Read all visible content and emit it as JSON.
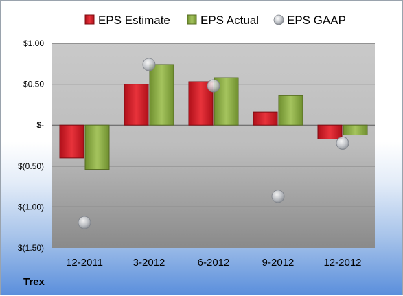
{
  "company": "Trex",
  "chart_data": {
    "type": "bar",
    "categories": [
      "12-2011",
      "3-2012",
      "6-2012",
      "9-2012",
      "12-2012"
    ],
    "series": [
      {
        "name": "EPS Estimate",
        "kind": "bar",
        "color": "#d0202a",
        "values": [
          -0.4,
          0.5,
          0.53,
          0.16,
          -0.17
        ]
      },
      {
        "name": "EPS Actual",
        "kind": "bar",
        "color": "#8fb04c",
        "values": [
          -0.54,
          0.74,
          0.58,
          0.36,
          -0.12
        ]
      },
      {
        "name": "EPS GAAP",
        "kind": "scatter",
        "color": "#b8bcc2",
        "values": [
          -1.19,
          0.74,
          0.48,
          -0.87,
          -0.22
        ]
      }
    ],
    "ylim": [
      -1.5,
      1.0
    ],
    "yticks": [
      1.0,
      0.5,
      0.0,
      -0.5,
      -1.0,
      -1.5
    ],
    "ytick_labels": [
      "$1.00",
      "$0.50",
      "$-",
      "$(0.50)",
      "$(1.00)",
      "$(1.50)"
    ],
    "grid": true,
    "legend": "top"
  }
}
